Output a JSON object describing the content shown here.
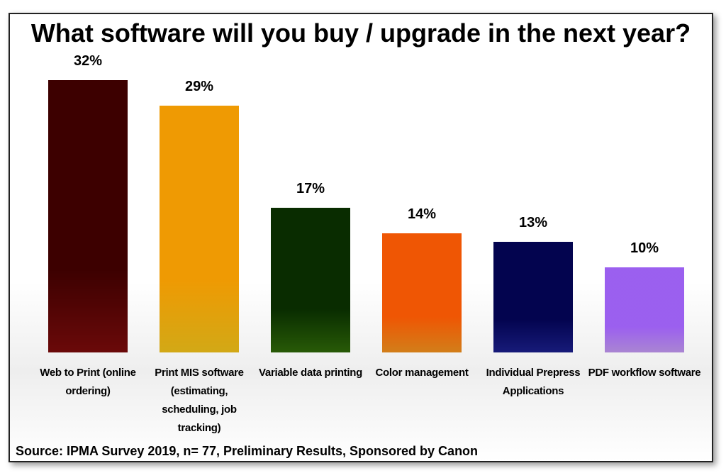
{
  "chart_data": {
    "type": "bar",
    "title": "What software will you buy / upgrade in the next year?",
    "categories": [
      "Web to Print (online ordering)",
      "Print MIS software (estimating, scheduling, job tracking)",
      "Variable data printing",
      "Color management",
      "Individual Prepress Applications",
      "PDF workflow software"
    ],
    "values": [
      32,
      29,
      17,
      14,
      13,
      10
    ],
    "value_labels": [
      "32%",
      "29%",
      "17%",
      "14%",
      "13%",
      "10%"
    ],
    "colors": [
      "#7d0b0b",
      "#f7c61a",
      "#2f6a08",
      "#f7941e",
      "#1b1f8e",
      "#c79cf7"
    ],
    "source": "Source: IPMA Survey 2019, n= 77, Preliminary Results, Sponsored by Canon"
  }
}
